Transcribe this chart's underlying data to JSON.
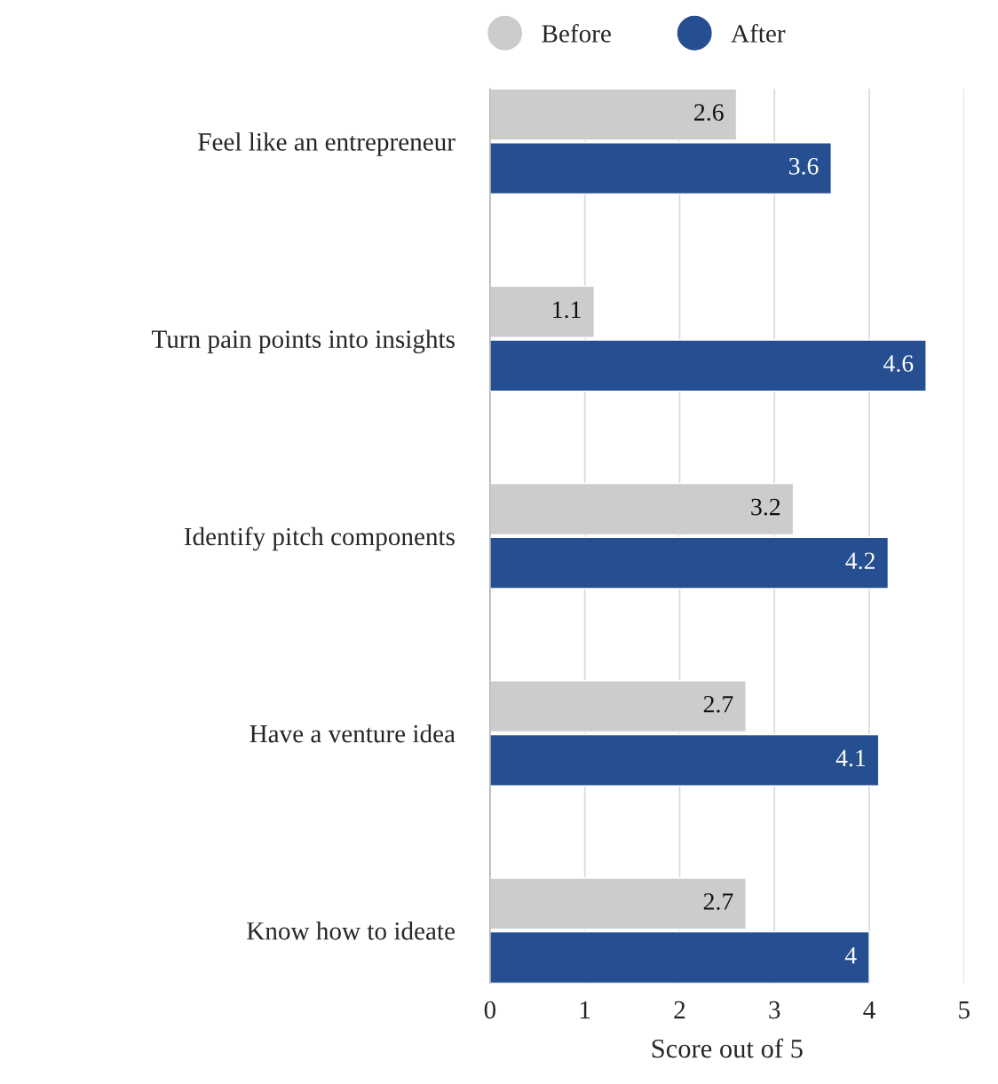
{
  "chart_data": {
    "type": "bar",
    "orientation": "horizontal",
    "xlabel": "Score out of 5",
    "categories": [
      "Feel like an entrepreneur",
      "Turn pain points into insights",
      "Identify pitch components",
      "Have a venture idea",
      "Know how to ideate"
    ],
    "series": [
      {
        "name": "Before",
        "color": "#cccccc",
        "values": [
          2.6,
          1.1,
          3.2,
          2.7,
          2.7
        ]
      },
      {
        "name": "After",
        "color": "#264f91",
        "values": [
          3.6,
          4.6,
          4.2,
          4.1,
          4
        ]
      }
    ],
    "xlim": [
      0,
      5
    ],
    "xticks": [
      0,
      1,
      2,
      3,
      4,
      5
    ],
    "grid": "x",
    "legend": "top",
    "data_labels": true
  }
}
